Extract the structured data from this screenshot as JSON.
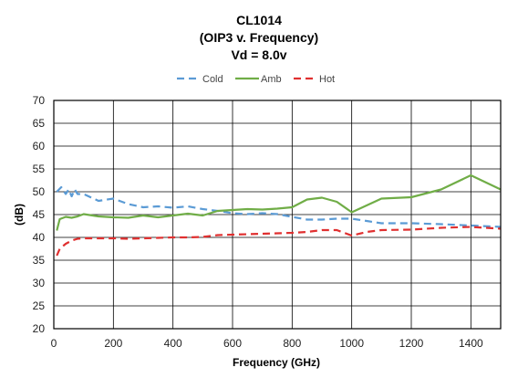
{
  "chart_data": {
    "type": "line",
    "title": [
      "CL1014",
      "(OIP3 v. Frequency)",
      "Vd = 8.0v"
    ],
    "xlabel": "Frequency (GHz)",
    "ylabel": "(dB)",
    "xlim": [
      0,
      1500
    ],
    "ylim": [
      20,
      70
    ],
    "xticks": [
      0,
      200,
      400,
      600,
      800,
      1000,
      1200,
      1400
    ],
    "yticks": [
      20,
      25,
      30,
      35,
      40,
      45,
      50,
      55,
      60,
      65,
      70
    ],
    "grid": true,
    "legend_position": "top",
    "series": [
      {
        "name": "Cold",
        "color": "#5B9BD5",
        "dash": "dashed",
        "x": [
          10,
          25,
          40,
          50,
          60,
          70,
          80,
          100,
          150,
          200,
          250,
          300,
          350,
          400,
          450,
          500,
          550,
          600,
          650,
          700,
          750,
          800,
          850,
          900,
          950,
          1000,
          1050,
          1100,
          1200,
          1300,
          1400,
          1500
        ],
        "y": [
          50,
          51,
          49.5,
          50.5,
          49,
          50.5,
          49.5,
          49.5,
          48,
          48.5,
          47.3,
          46.6,
          46.8,
          46.5,
          46.8,
          46.2,
          45.8,
          45.3,
          45.1,
          45.3,
          45.1,
          44.5,
          43.9,
          43.9,
          44.1,
          44.1,
          43.6,
          43.1,
          43.1,
          42.9,
          42.6,
          42.3
        ]
      },
      {
        "name": "Amb",
        "color": "#70AD47",
        "dash": "solid",
        "x": [
          10,
          20,
          40,
          60,
          80,
          100,
          150,
          200,
          250,
          300,
          350,
          400,
          450,
          500,
          550,
          600,
          650,
          700,
          750,
          800,
          850,
          900,
          950,
          1000,
          1100,
          1200,
          1300,
          1400,
          1500
        ],
        "y": [
          41.5,
          44,
          44.5,
          44.3,
          44.6,
          45.1,
          44.6,
          44.4,
          44.3,
          44.8,
          44.4,
          44.8,
          45.2,
          44.8,
          45.8,
          46,
          46.2,
          46.1,
          46.3,
          46.6,
          48.3,
          48.7,
          47.8,
          45.5,
          48.5,
          48.8,
          50.5,
          53.6,
          50.5
        ]
      },
      {
        "name": "Hot",
        "color": "#E03030",
        "dash": "dashed",
        "x": [
          10,
          20,
          40,
          60,
          80,
          100,
          150,
          200,
          250,
          300,
          350,
          400,
          450,
          500,
          550,
          600,
          650,
          700,
          750,
          800,
          850,
          900,
          950,
          1000,
          1050,
          1100,
          1200,
          1300,
          1400,
          1500
        ],
        "y": [
          36,
          37.5,
          38.6,
          39.3,
          39.7,
          39.8,
          39.8,
          39.8,
          39.7,
          39.8,
          39.9,
          40,
          40,
          40.1,
          40.5,
          40.6,
          40.7,
          40.8,
          40.9,
          41,
          41.2,
          41.6,
          41.6,
          40.4,
          41.2,
          41.6,
          41.7,
          42.1,
          42.3,
          41.9
        ]
      }
    ]
  }
}
